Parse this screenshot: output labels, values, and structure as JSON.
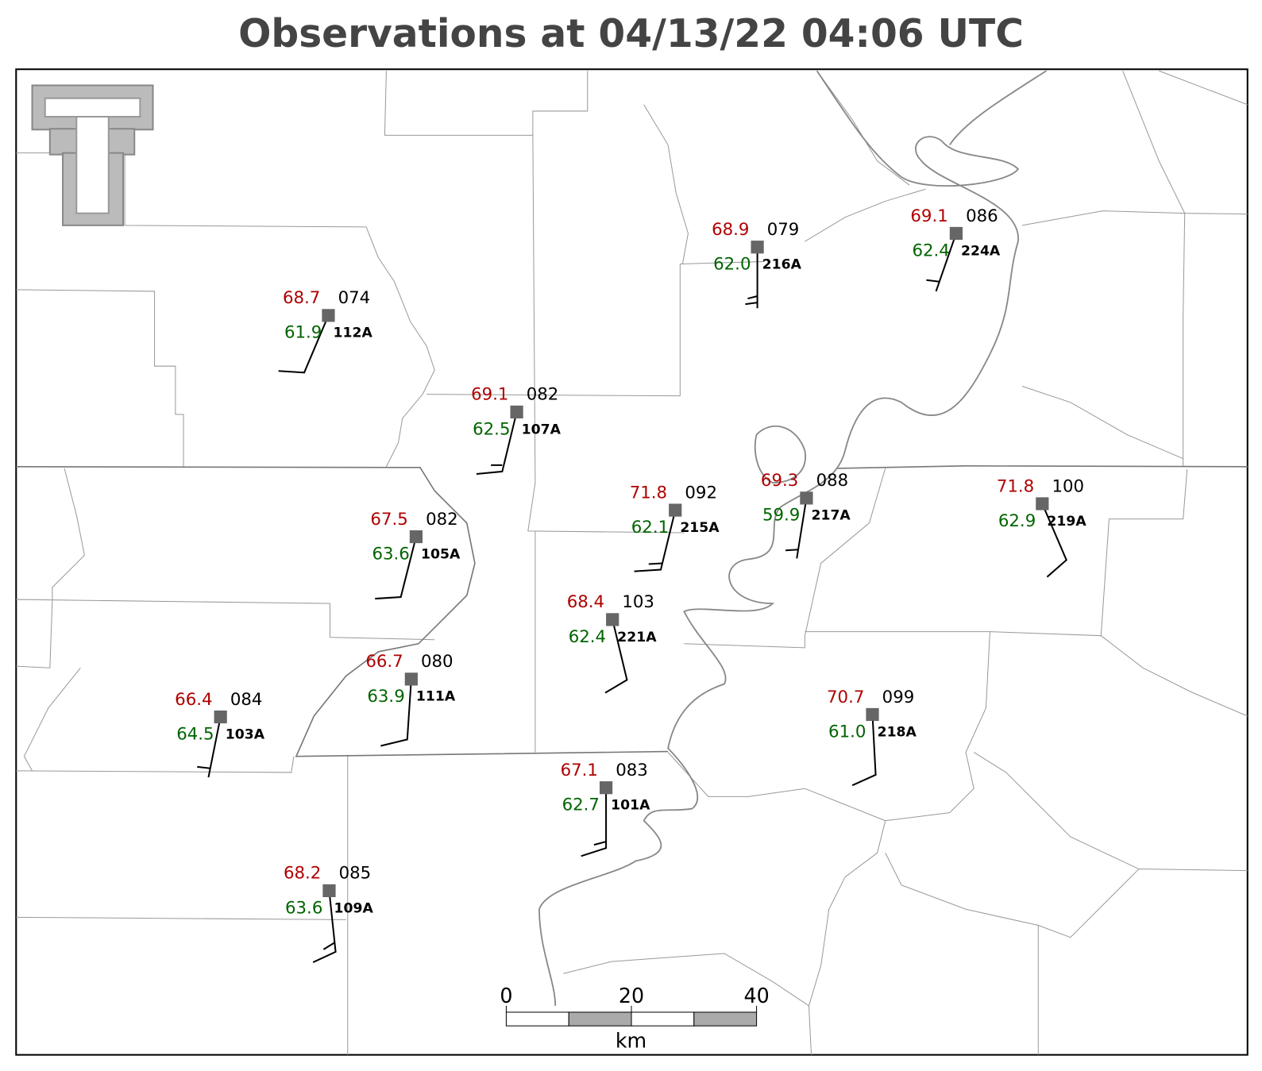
{
  "title": "Observations at 04/13/22 04:06 UTC",
  "stations": [
    {
      "id": "112A",
      "temp": "68.7",
      "dewpoint": "61.9",
      "pressure": "074"
    },
    {
      "id": "107A",
      "temp": "69.1",
      "dewpoint": "62.5",
      "pressure": "082"
    },
    {
      "id": "216A",
      "temp": "68.9",
      "dewpoint": "62.0",
      "pressure": "079"
    },
    {
      "id": "224A",
      "temp": "69.1",
      "dewpoint": "62.4",
      "pressure": "086"
    },
    {
      "id": "105A",
      "temp": "67.5",
      "dewpoint": "63.6",
      "pressure": "082"
    },
    {
      "id": "215A",
      "temp": "71.8",
      "dewpoint": "62.1",
      "pressure": "092"
    },
    {
      "id": "217A",
      "temp": "69.3",
      "dewpoint": "59.9",
      "pressure": "088"
    },
    {
      "id": "219A",
      "temp": "71.8",
      "dewpoint": "62.9",
      "pressure": "100"
    },
    {
      "id": "221A",
      "temp": "68.4",
      "dewpoint": "62.4",
      "pressure": "103"
    },
    {
      "id": "111A",
      "temp": "66.7",
      "dewpoint": "63.9",
      "pressure": "080"
    },
    {
      "id": "103A",
      "temp": "66.4",
      "dewpoint": "64.5",
      "pressure": "084"
    },
    {
      "id": "218A",
      "temp": "70.7",
      "dewpoint": "61.0",
      "pressure": "099"
    },
    {
      "id": "101A",
      "temp": "67.1",
      "dewpoint": "62.7",
      "pressure": "083"
    },
    {
      "id": "109A",
      "temp": "68.2",
      "dewpoint": "63.6",
      "pressure": "085"
    }
  ],
  "scale_bar": {
    "ticks": [
      0,
      20,
      40
    ],
    "unit": "km"
  }
}
